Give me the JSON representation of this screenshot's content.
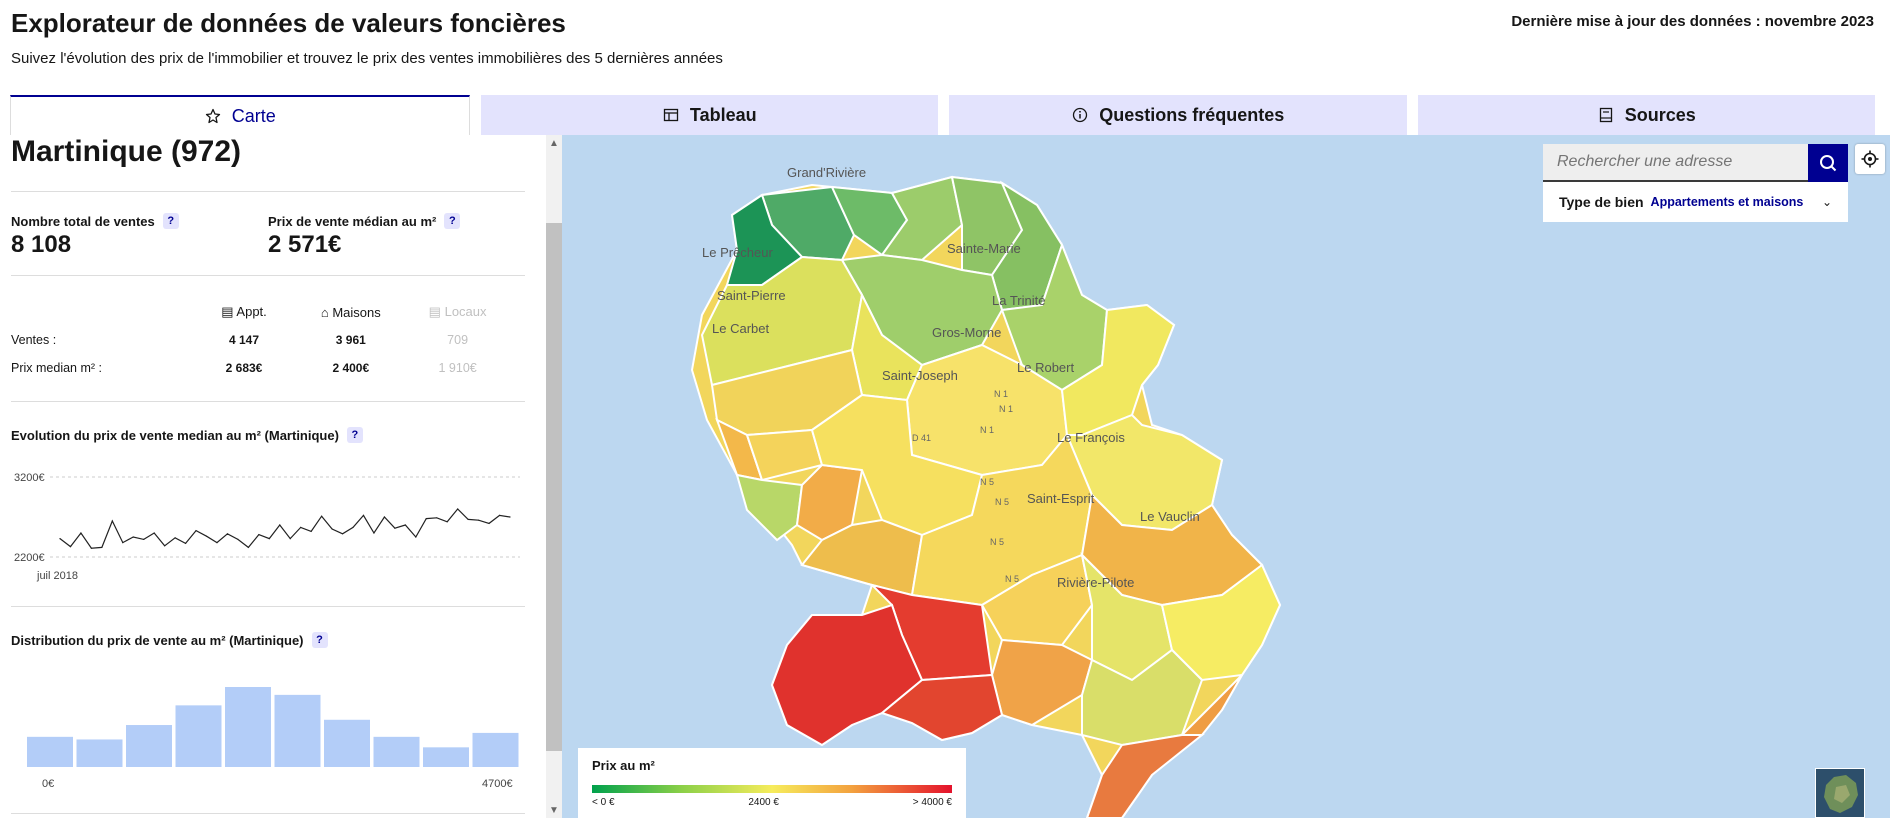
{
  "header": {
    "title": "Explorateur de données de valeurs foncières",
    "subtitle": "Suivez l'évolution des prix de l'immobilier et trouvez le prix des ventes immobilières des 5 dernières années",
    "last_update": "Dernière mise à jour des données : novembre 2023"
  },
  "tabs": [
    {
      "label": "Carte",
      "icon": "map-icon",
      "active": true
    },
    {
      "label": "Tableau",
      "icon": "table-icon",
      "active": false
    },
    {
      "label": "Questions fréquentes",
      "icon": "info-icon",
      "active": false
    },
    {
      "label": "Sources",
      "icon": "book-icon",
      "active": false
    }
  ],
  "panel": {
    "dept_title": "Martinique (972)",
    "help_symbol": "?",
    "total_sales": {
      "label": "Nombre total de ventes",
      "value": "8 108"
    },
    "median_price": {
      "label": "Prix de vente médian au m²",
      "value": "2 571€"
    },
    "breakdown": {
      "headers": [
        "Appt.",
        "Maisons",
        "Locaux"
      ],
      "header_icons": [
        "apartment-icon",
        "house-icon",
        "shop-icon"
      ],
      "rows": [
        {
          "label": "Ventes :",
          "values": [
            "4 147",
            "3 961",
            "709"
          ]
        },
        {
          "label": "Prix median m² :",
          "values": [
            "2 683€",
            "2 400€",
            "1 910€"
          ]
        }
      ]
    },
    "evolution_title": "Evolution du prix de vente median au m² (Martinique)",
    "distribution_title": "Distribution du prix de vente au m² (Martinique)"
  },
  "chart_data": [
    {
      "type": "line",
      "title": "Evolution du prix de vente median au m² (Martinique)",
      "ylim": [
        2200,
        3200
      ],
      "yticks": [
        "3200€",
        "2200€"
      ],
      "x_start_label": "juil 2018",
      "grid": true,
      "values": [
        2430,
        2330,
        2500,
        2310,
        2320,
        2650,
        2380,
        2450,
        2420,
        2500,
        2340,
        2440,
        2370,
        2530,
        2460,
        2380,
        2490,
        2420,
        2320,
        2480,
        2430,
        2600,
        2430,
        2570,
        2520,
        2710,
        2550,
        2490,
        2570,
        2720,
        2500,
        2700,
        2560,
        2600,
        2450,
        2680,
        2690,
        2640,
        2800,
        2670,
        2660,
        2620,
        2720,
        2700
      ]
    },
    {
      "type": "bar",
      "title": "Distribution du prix de vente au m² (Martinique)",
      "x_labels": [
        "0€",
        "4700€"
      ],
      "values": [
        23,
        21,
        32,
        47,
        61,
        55,
        36,
        23,
        15,
        26
      ],
      "color": "#b3cdf8"
    }
  ],
  "map": {
    "search_placeholder": "Rechercher une adresse",
    "type_label": "Type de bien",
    "type_value": "Appartements et maisons",
    "places": [
      "Grand'Rivière",
      "Le Prêcheur",
      "Sainte-Marie",
      "Saint-Pierre",
      "La Trinité",
      "Le Carbet",
      "Gros-Morne",
      "Le Robert",
      "Saint-Joseph",
      "Le François",
      "Saint-Esprit",
      "Le Vauclin",
      "Rivière-Pilote"
    ],
    "roads": [
      "N 1",
      "N 1",
      "N 1",
      "D 41",
      "N 5",
      "N 5",
      "N 5",
      "N 5"
    ],
    "legend": {
      "title": "Prix au m²",
      "min_label": "< 0 €",
      "mid_label": "2400 €",
      "max_label": "> 4000 €",
      "colors": [
        "#00a14c",
        "#8cd048",
        "#f6ec5c",
        "#f3a23f",
        "#e4122c"
      ]
    }
  }
}
